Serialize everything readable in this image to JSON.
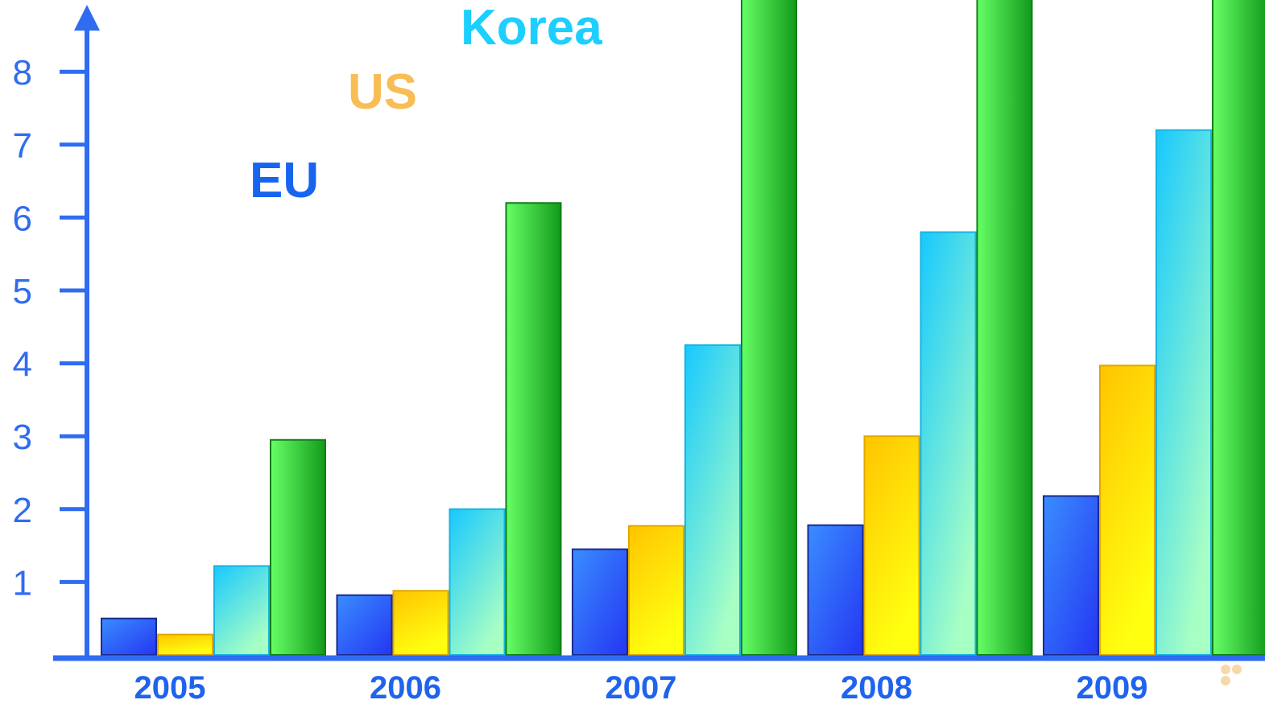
{
  "chart_data": {
    "type": "bar",
    "title": "",
    "xlabel": "",
    "ylabel": "",
    "categories": [
      "2005",
      "2006",
      "2007",
      "2008",
      "2009"
    ],
    "y_ticks": [
      "1",
      "2",
      "3",
      "4",
      "5",
      "6",
      "7",
      "8"
    ],
    "ylim": [
      0,
      9
    ],
    "grid": false,
    "legend_placement": "top-left, staggered labels in plot area",
    "series": [
      {
        "name": "EU",
        "color": "#2f5df0",
        "values": [
          0.5,
          0.82,
          1.45,
          1.78,
          2.18
        ]
      },
      {
        "name": "US",
        "color": "#f9bd55",
        "values": [
          0.28,
          0.88,
          1.77,
          3.0,
          3.97
        ]
      },
      {
        "name": "Korea",
        "color": "#1ccfff",
        "values": [
          1.22,
          2.0,
          4.25,
          5.8,
          7.2
        ]
      },
      {
        "name": "",
        "color": "#3bd64a",
        "values": [
          2.95,
          6.2,
          9.5,
          9.5,
          9.5
        ]
      }
    ]
  }
}
